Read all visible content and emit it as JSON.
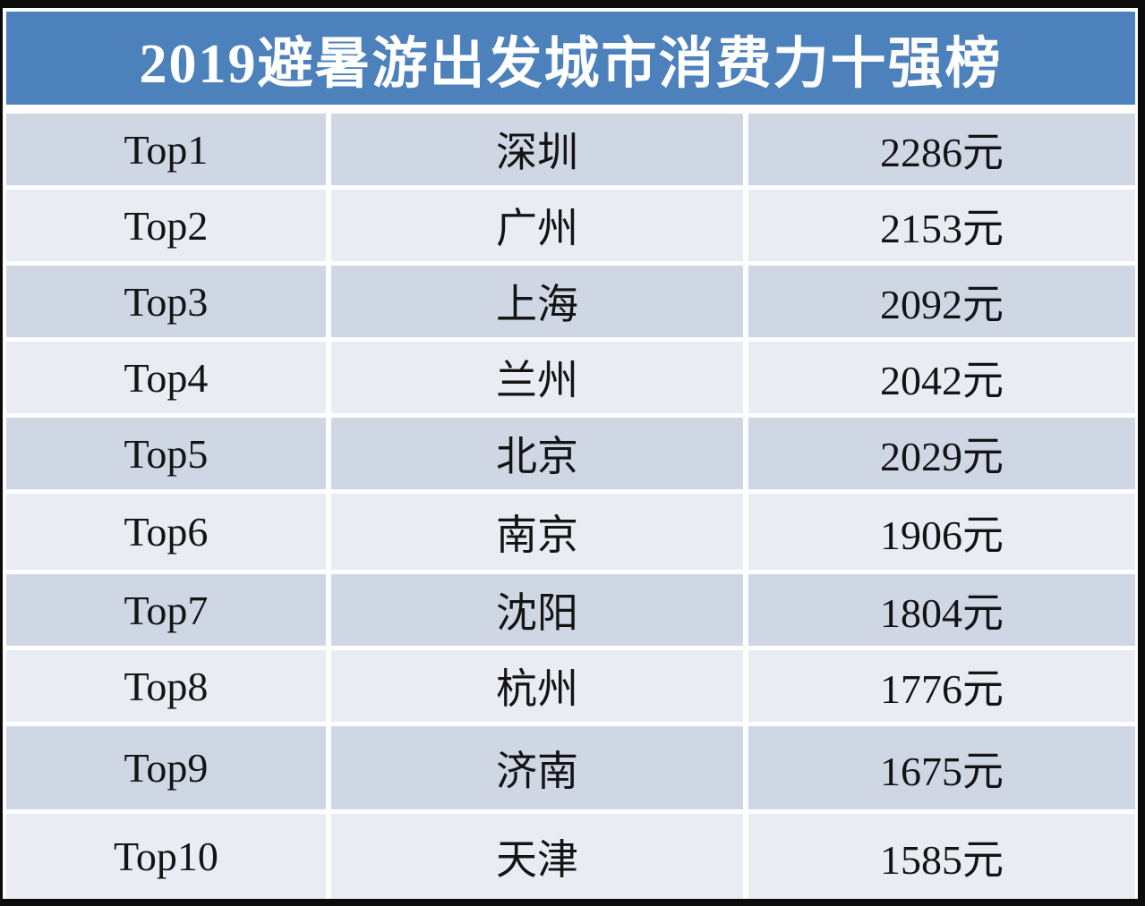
{
  "title": "2019避暑游出发城市消费力十强榜",
  "colors": {
    "header_bg": "#4D81BC",
    "header_text": "#FFFFFF",
    "row_dark": "#CFD6E4",
    "row_light": "#E9ECF3",
    "gap": "#FFFFFF",
    "frame": "#0B0B0B",
    "text": "#141414"
  },
  "table": {
    "rows": [
      {
        "rank": "Top1",
        "city": "深圳",
        "spend": "2286元"
      },
      {
        "rank": "Top2",
        "city": "广州",
        "spend": "2153元"
      },
      {
        "rank": "Top3",
        "city": "上海",
        "spend": "2092元"
      },
      {
        "rank": "Top4",
        "city": "兰州",
        "spend": "2042元"
      },
      {
        "rank": "Top5",
        "city": "北京",
        "spend": "2029元"
      },
      {
        "rank": "Top6",
        "city": "南京",
        "spend": "1906元"
      },
      {
        "rank": "Top7",
        "city": "沈阳",
        "spend": "1804元"
      },
      {
        "rank": "Top8",
        "city": "杭州",
        "spend": "1776元"
      },
      {
        "rank": "Top9",
        "city": "济南",
        "spend": "1675元"
      },
      {
        "rank": "Top10",
        "city": "天津",
        "spend": "1585元"
      }
    ]
  },
  "chart_data": {
    "type": "table",
    "title": "2019避暑游出发城市消费力十强榜",
    "columns": [
      "rank",
      "city",
      "avg_spend"
    ],
    "unit": "元",
    "rows": [
      [
        "Top1",
        "深圳",
        2286
      ],
      [
        "Top2",
        "广州",
        2153
      ],
      [
        "Top3",
        "上海",
        2092
      ],
      [
        "Top4",
        "兰州",
        2042
      ],
      [
        "Top5",
        "北京",
        2029
      ],
      [
        "Top6",
        "南京",
        1906
      ],
      [
        "Top7",
        "沈阳",
        1804
      ],
      [
        "Top8",
        "杭州",
        1776
      ],
      [
        "Top9",
        "济南",
        1675
      ],
      [
        "Top10",
        "天津",
        1585
      ]
    ]
  }
}
